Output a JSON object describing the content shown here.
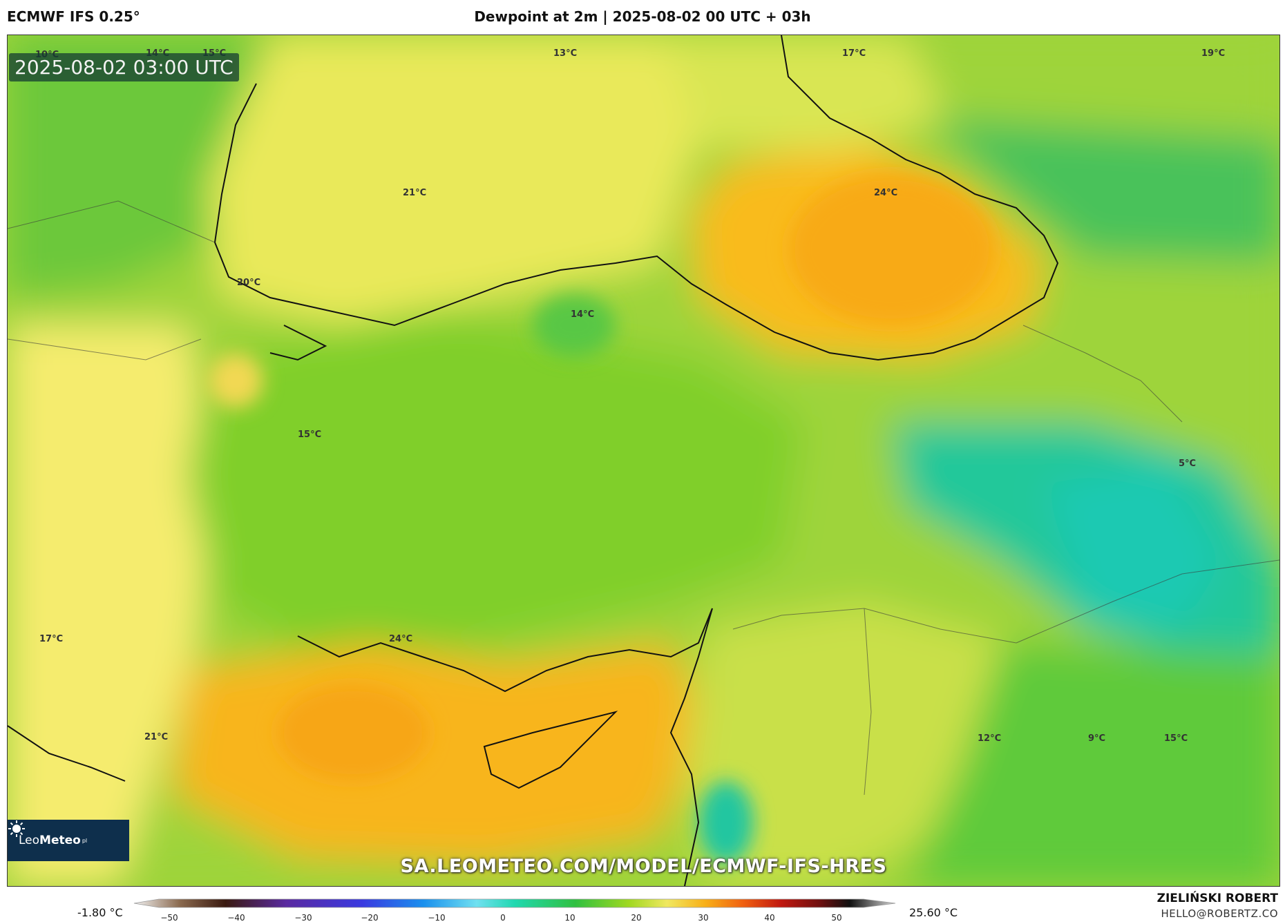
{
  "header": {
    "model": "ECMWF IFS 0.25°",
    "title": "Dewpoint at 2m | 2025-08-02 00 UTC + 03h"
  },
  "map": {
    "timestamp": "2025-08-02 03:00 UTC",
    "watermark": "SA.LEOMETEO.COM/MODEL/ECMWF-IFS-HRES",
    "labels": [
      "10°C",
      "14°C",
      "15°C",
      "13°C",
      "17°C",
      "19°C",
      "21°C",
      "24°C",
      "20°C",
      "14°C",
      "15°C",
      "5°C",
      "17°C",
      "24°C",
      "21°C",
      "12°C",
      "9°C",
      "15°C"
    ]
  },
  "logo": {
    "text_regular": "Leo",
    "text_bold": "Meteo",
    "suffix": "pl"
  },
  "scale": {
    "min_label": "-1.80 °C",
    "max_label": "25.60 °C",
    "ticks": [
      "−50",
      "−40",
      "−30",
      "−20",
      "−10",
      "0",
      "10",
      "20",
      "30",
      "40",
      "50"
    ]
  },
  "footer": {
    "author": "ZIELIŃSKI ROBERT",
    "email": "HELLO@ROBERTZ.CO"
  },
  "colors": {
    "yellow": "#f5ea6a",
    "orange": "#f9bc1a",
    "green": "#7cd12e",
    "teal": "#18c79a",
    "logo_bg": "#0e2f4c"
  }
}
